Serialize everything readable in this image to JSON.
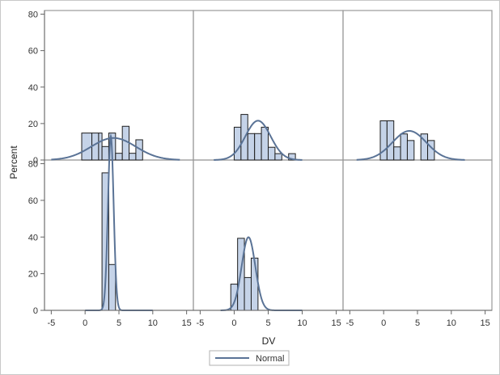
{
  "chart_data": {
    "type": "histogram-panel",
    "ylabel": "Percent",
    "xlabel": "DV",
    "legend": {
      "label": "Normal",
      "placement": "bottom-center"
    },
    "xlim": [
      -6,
      16
    ],
    "ylim": [
      0,
      82
    ],
    "xticks": [
      -5,
      0,
      5,
      10,
      15
    ],
    "yticks": [
      0,
      20,
      40,
      60,
      80
    ],
    "colors": {
      "bar_fill": "#c5d3e8",
      "bar_stroke": "#1e1e1e",
      "curve": "#5a7396",
      "panel_border": "#999999",
      "axis": "#666666"
    },
    "panels": [
      {
        "row": 0,
        "col": 0,
        "bars": [
          [
            -0.5,
            1,
            14.8
          ],
          [
            1,
            2,
            14.8
          ],
          [
            2,
            2.5,
            14.8
          ],
          [
            2.5,
            3.5,
            7.4
          ],
          [
            3.5,
            4.5,
            14.8
          ],
          [
            4.5,
            5.5,
            3.7
          ],
          [
            5.5,
            6.5,
            18.5
          ],
          [
            6.5,
            7.5,
            3.7
          ],
          [
            7.5,
            8.5,
            11.1
          ]
        ],
        "normal": {
          "mean": 4.2,
          "sd": 3.3,
          "range": [
            -5,
            14
          ]
        }
      },
      {
        "row": 0,
        "col": 1,
        "bars": [
          [
            0,
            1,
            18
          ],
          [
            1,
            2,
            25
          ],
          [
            2,
            3,
            14.5
          ],
          [
            3,
            4,
            14.5
          ],
          [
            4,
            5,
            18
          ],
          [
            5,
            6,
            7
          ],
          [
            6,
            7,
            3.5
          ],
          [
            7,
            8,
            0
          ],
          [
            8,
            9,
            3.5
          ]
        ],
        "normal": {
          "mean": 3.5,
          "sd": 1.85,
          "range": [
            -3,
            10
          ]
        }
      },
      {
        "row": 0,
        "col": 2,
        "bars": [
          [
            -0.5,
            0.5,
            21.5
          ],
          [
            0.5,
            1.5,
            21.5
          ],
          [
            1.5,
            2.5,
            7.2
          ],
          [
            2.5,
            3.5,
            14.3
          ],
          [
            3.5,
            4.5,
            10.7
          ],
          [
            4.5,
            5.5,
            0
          ],
          [
            5.5,
            6.5,
            14.3
          ],
          [
            6.5,
            7.5,
            10.7
          ]
        ],
        "normal": {
          "mean": 3.8,
          "sd": 2.5,
          "range": [
            -4,
            12
          ]
        }
      },
      {
        "row": 1,
        "col": 0,
        "bars": [
          [
            2.5,
            3.5,
            75
          ],
          [
            3.5,
            4.5,
            25
          ]
        ],
        "normal": {
          "mean": 3.8,
          "sd": 0.42,
          "range": [
            0,
            10
          ]
        }
      },
      {
        "row": 1,
        "col": 1,
        "bars": [
          [
            -0.5,
            0.5,
            14.3
          ],
          [
            0.5,
            1.5,
            39.3
          ],
          [
            1.5,
            2.5,
            17.9
          ],
          [
            2.5,
            3.5,
            28.5
          ]
        ],
        "normal": {
          "mean": 2.1,
          "sd": 1.0,
          "range": [
            -2,
            10
          ]
        }
      }
    ]
  }
}
